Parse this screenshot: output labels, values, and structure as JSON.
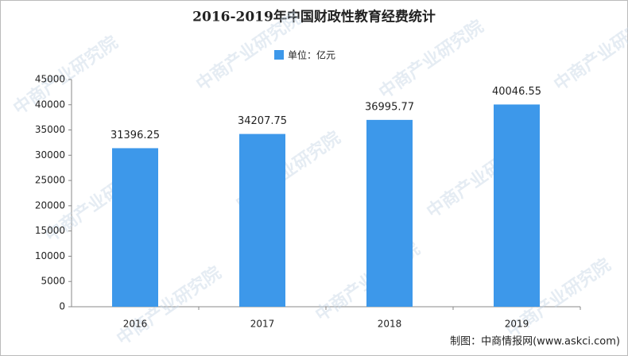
{
  "chart_data": {
    "type": "bar",
    "title": "2016-2019年中国财政性教育经费统计",
    "legend": "单位：亿元",
    "categories": [
      "2016",
      "2017",
      "2018",
      "2019"
    ],
    "values": [
      31396.25,
      34207.75,
      36995.77,
      40046.55
    ],
    "color": "#3d98ea",
    "ylim": [
      0,
      45000
    ],
    "yticks": [
      0,
      5000,
      10000,
      15000,
      20000,
      25000,
      30000,
      35000,
      40000,
      45000
    ],
    "grid": false,
    "source": "制图：中商情报网(www.askci.com)",
    "watermark": "中商产业研究院"
  }
}
